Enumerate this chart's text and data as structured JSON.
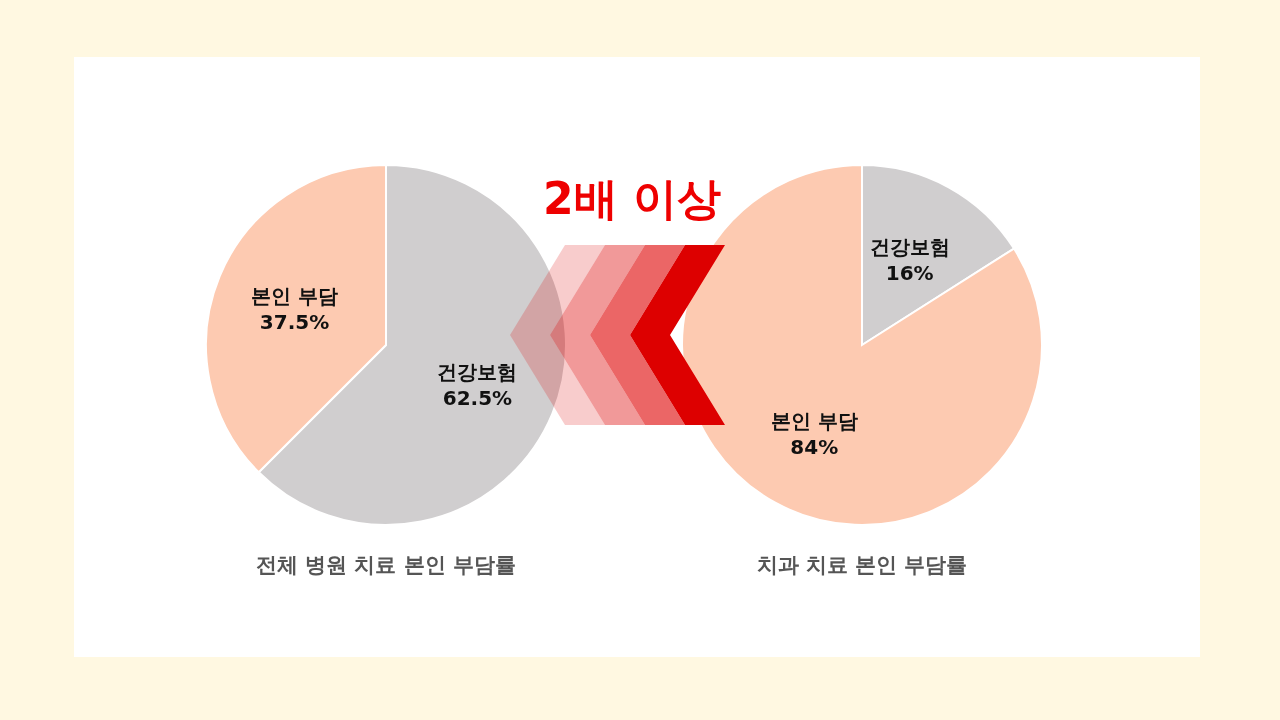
{
  "chart_data": [
    {
      "type": "pie",
      "title": "전체 병원 치료 본인 부담률",
      "categories": [
        "건강보험",
        "본인 부담"
      ],
      "values": [
        62.5,
        37.5
      ],
      "value_labels": [
        "62.5%",
        "37.5%"
      ],
      "colors": [
        "#d0cecf",
        "#fdcab1"
      ],
      "annotations": [
        "2배 이상"
      ]
    },
    {
      "type": "pie",
      "title": "치과 치료 본인 부담률",
      "categories": [
        "건강보험",
        "본인 부담"
      ],
      "values": [
        16,
        84
      ],
      "value_labels": [
        "16%",
        "84%"
      ],
      "colors": [
        "#d0cecf",
        "#fdcab1"
      ]
    }
  ]
}
